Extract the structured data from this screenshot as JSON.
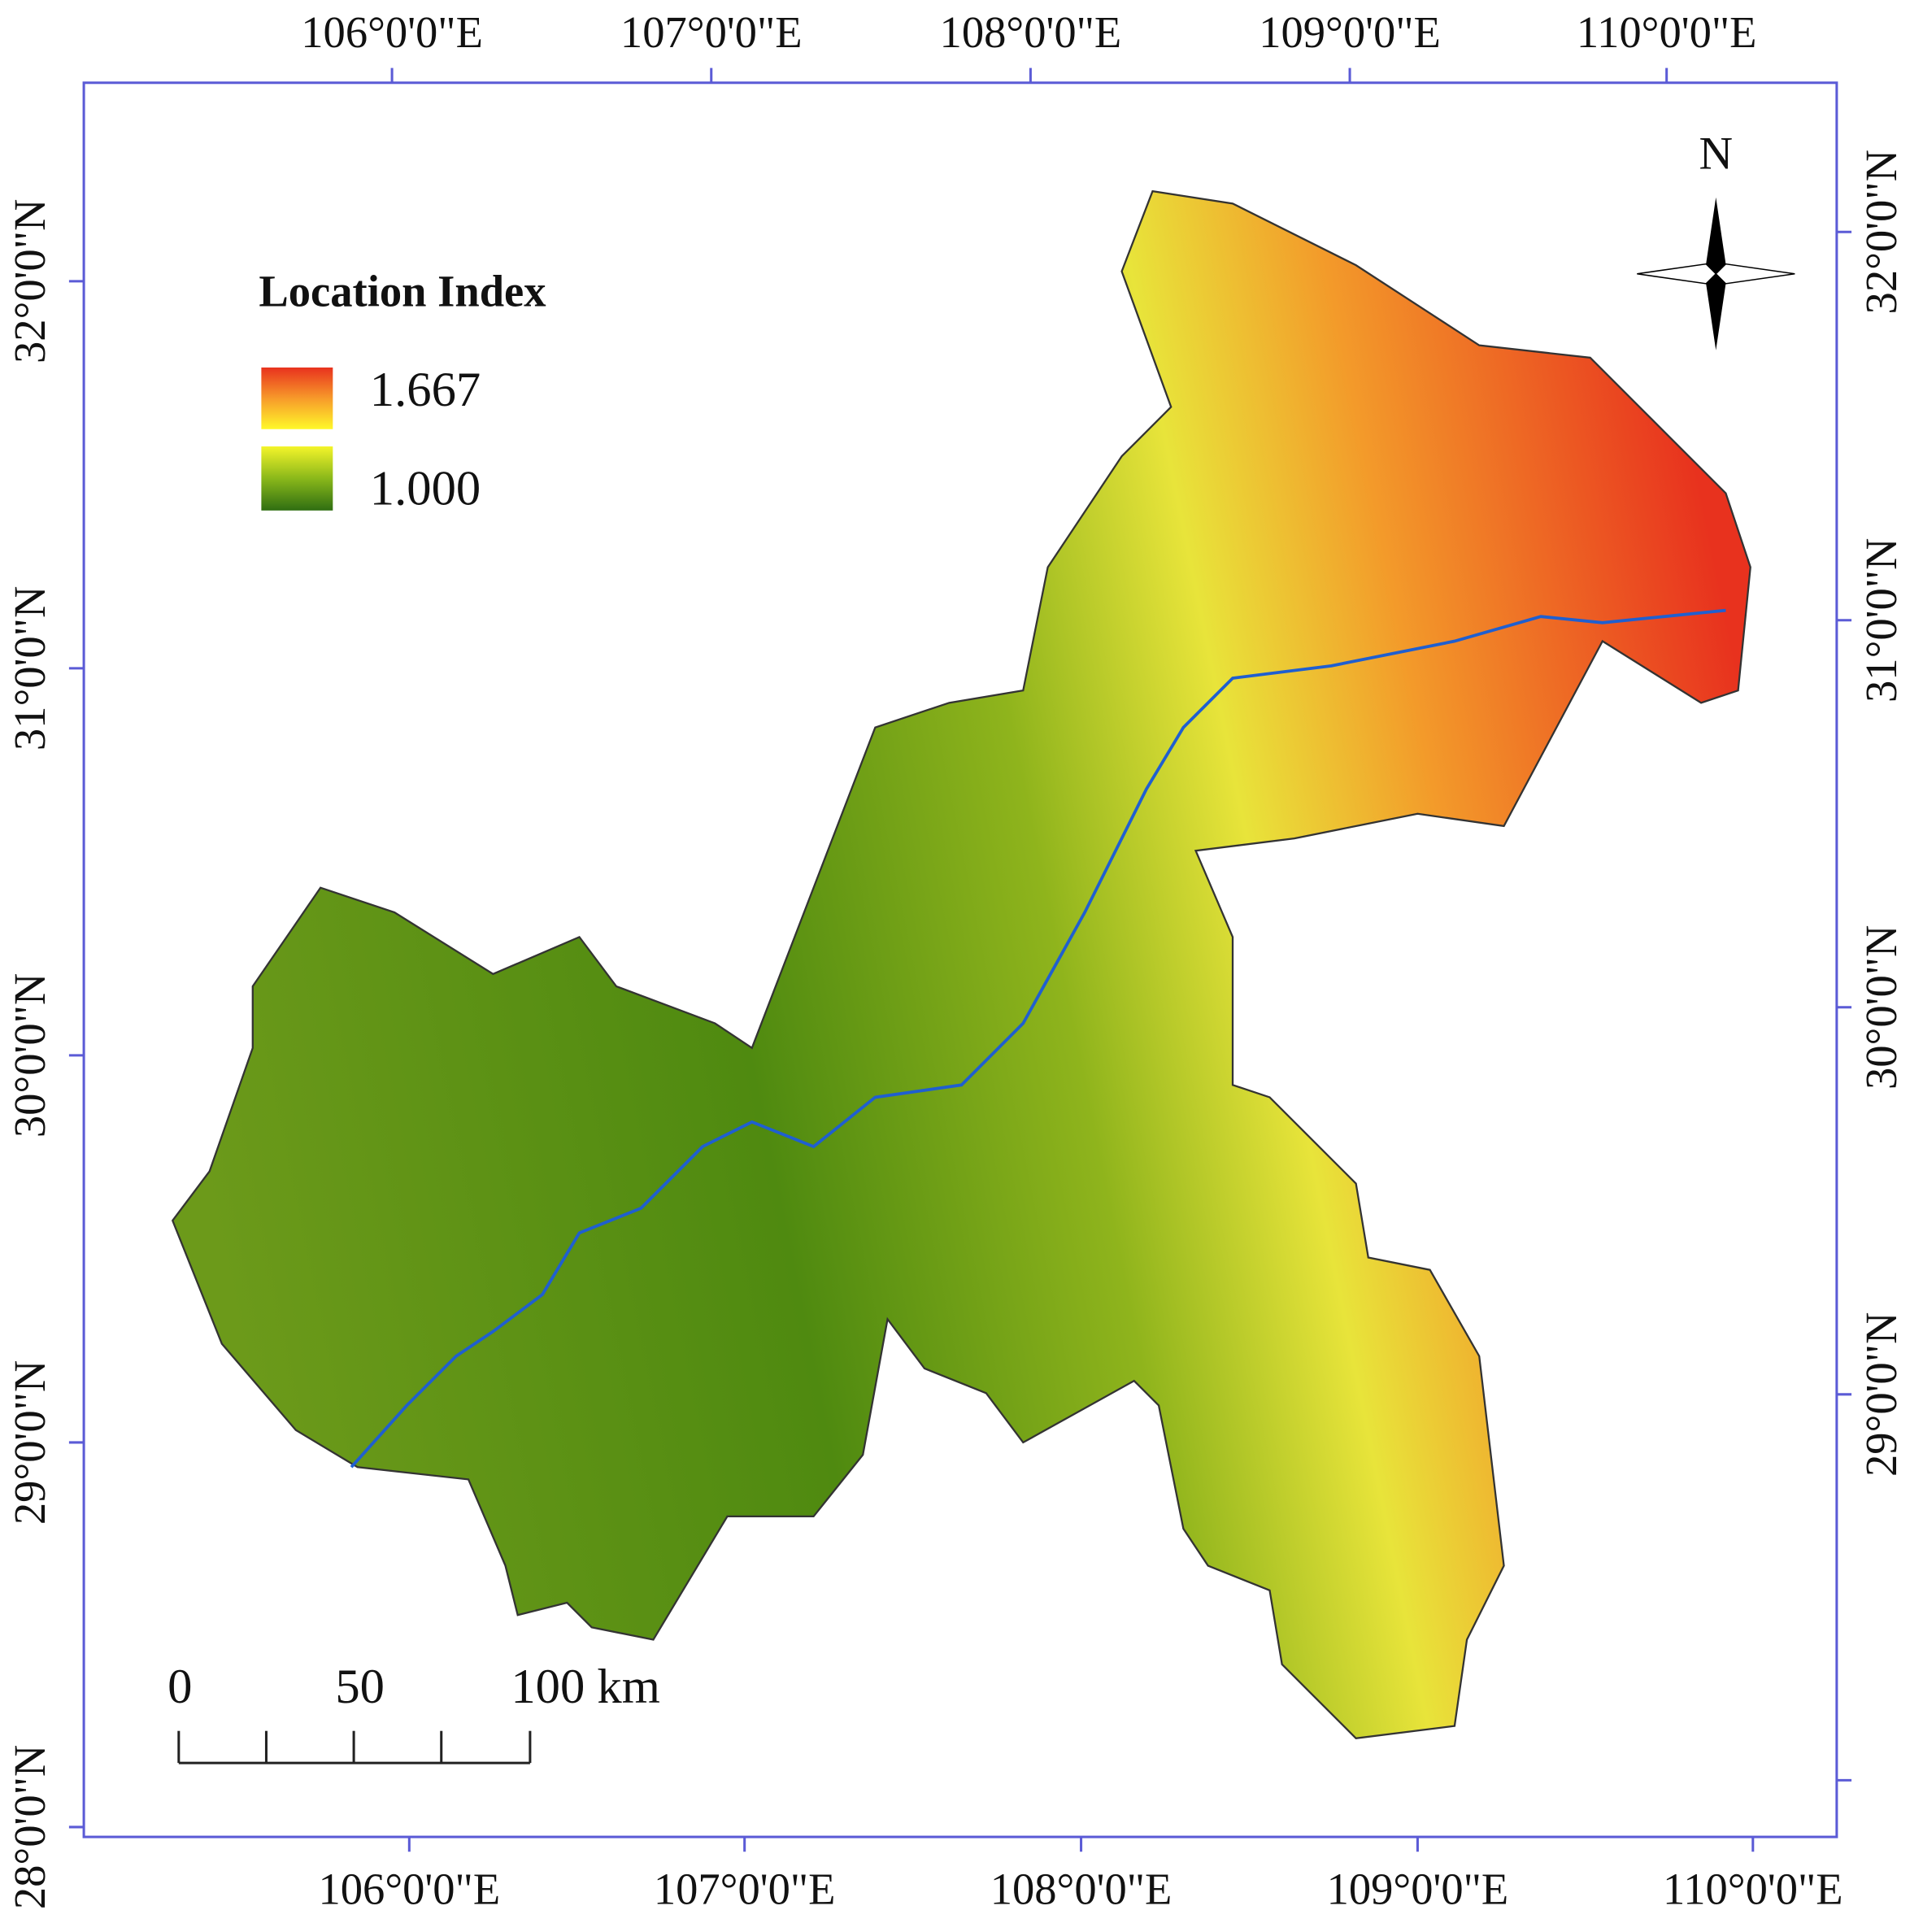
{
  "map": {
    "legend": {
      "title": "Location Index",
      "high": "1.667",
      "low": "1.000"
    },
    "north": "N",
    "scale_bar": [
      "0",
      "50",
      "100 km"
    ],
    "axes": {
      "top": [
        "106°0'0\"E",
        "107°0'0\"E",
        "108°0'0\"E",
        "109°0'0\"E",
        "110°0'0\"E"
      ],
      "bottom": [
        "106°0'0\"E",
        "107°0'0\"E",
        "108°0'0\"E",
        "109°0'0\"E",
        "110°0'0\"E"
      ],
      "left": [
        "32°0'0\"N",
        "31°0'0\"N",
        "30°0'0\"N",
        "29°0'0\"N",
        "28°0'0\"N"
      ],
      "right": [
        "32°0'0\"N",
        "31°0'0\"N",
        "30°0'0\"N",
        "29°0'0\"N"
      ]
    }
  }
}
